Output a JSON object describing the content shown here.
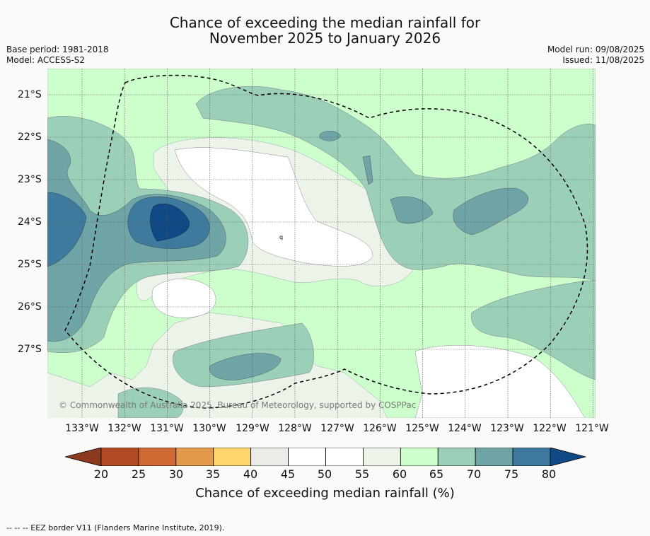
{
  "header": {
    "title_line1": "Chance of exceeding the median rainfall for",
    "title_line2": "November 2025 to January 2026",
    "base_period": "Base period: 1981-2018",
    "model": "Model: ACCESS-S2",
    "model_run": "Model run: 09/08/2025",
    "issued": "Issued: 11/08/2025"
  },
  "map": {
    "lat_ticks": [
      "21°S",
      "22°S",
      "23°S",
      "24°S",
      "25°S",
      "26°S",
      "27°S"
    ],
    "lon_ticks": [
      "133°W",
      "132°W",
      "131°W",
      "130°W",
      "129°W",
      "128°W",
      "127°W",
      "126°W",
      "125°W",
      "124°W",
      "123°W",
      "122°W",
      "121°W"
    ],
    "copyright": "© Commonwealth of Australia 2025, Bureau of Meteorology, supported by COSPPac",
    "contour_label": "q",
    "gridlines": true,
    "eez_border_style": "dashed"
  },
  "colorbar": {
    "labels": [
      "20",
      "25",
      "30",
      "35",
      "40",
      "45",
      "50",
      "55",
      "60",
      "65",
      "70",
      "75",
      "80"
    ],
    "below_color": "#8b3a1f",
    "above_color": "#0f4a86",
    "colors": [
      "#b24c27",
      "#cf6a35",
      "#e29a4c",
      "#fdd56c",
      "#ebebe8",
      "#ffffff",
      "#ffffff",
      "#ecf4ea",
      "#ccffcc",
      "#9ccfb7",
      "#6fa5a7",
      "#3e7a9d"
    ],
    "caption": "Chance of exceeding median rainfall (%)"
  },
  "legend": {
    "eez": "--  --  -- EEZ border V11 (Flanders Marine Institute, 2019)."
  }
}
